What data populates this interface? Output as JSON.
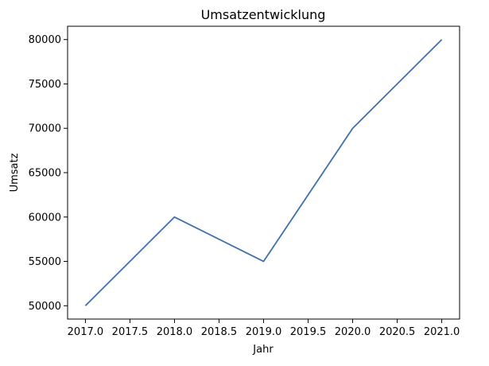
{
  "chart_data": {
    "type": "line",
    "title": "Umsatzentwicklung",
    "xlabel": "Jahr",
    "ylabel": "Umsatz",
    "x": [
      2017,
      2018,
      2019,
      2020,
      2021
    ],
    "series": [
      {
        "values": [
          50000,
          60000,
          55000,
          70000,
          80000
        ],
        "color": "#3f6fad"
      }
    ],
    "xlim": [
      2016.8,
      2021.2
    ],
    "ylim": [
      48500,
      81500
    ],
    "xticks": [
      2017.0,
      2017.5,
      2018.0,
      2018.5,
      2019.0,
      2019.5,
      2020.0,
      2020.5,
      2021.0
    ],
    "xtick_labels": [
      "2017.0",
      "2017.5",
      "2018.0",
      "2018.5",
      "2019.0",
      "2019.5",
      "2020.0",
      "2020.5",
      "2021.0"
    ],
    "yticks": [
      50000,
      55000,
      60000,
      65000,
      70000,
      75000,
      80000
    ],
    "ytick_labels": [
      "50000",
      "55000",
      "60000",
      "65000",
      "70000",
      "75000",
      "80000"
    ],
    "grid": false,
    "legend": "none"
  }
}
